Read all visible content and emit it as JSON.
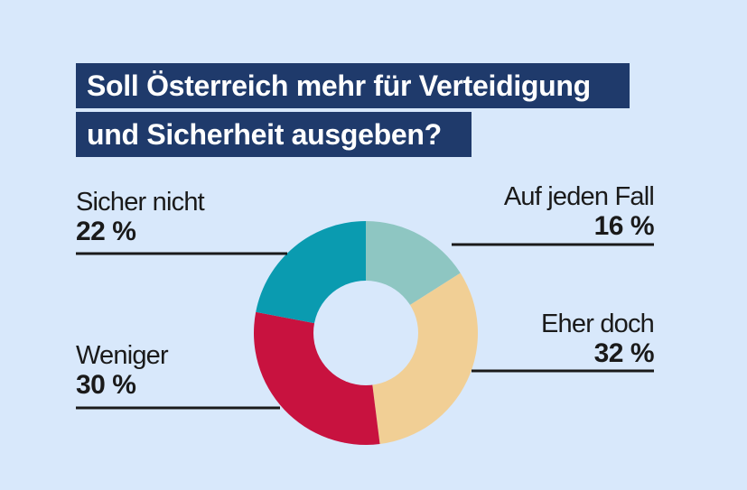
{
  "title": {
    "line1": "Soll Österreich mehr für Verteidigung",
    "line2": "und Sicherheit ausgeben?"
  },
  "colors": {
    "background": "#d8e8fb",
    "title_bg": "#1f3a6b",
    "leader_line": "#1a1a1a",
    "hole": "#d8e8fb"
  },
  "chart_data": {
    "type": "pie",
    "variant": "donut",
    "title": "Soll Österreich mehr für Verteidigung und Sicherheit ausgeben?",
    "start": "12 o'clock",
    "direction": "clockwise",
    "slices": [
      {
        "id": "auf-jeden-fall",
        "label": "Auf jeden Fall",
        "value": 16,
        "value_label": "16 %",
        "color": "#8ec6c2",
        "label_side": "right"
      },
      {
        "id": "eher-doch",
        "label": "Eher doch",
        "value": 32,
        "value_label": "32 %",
        "color": "#f1cf95",
        "label_side": "right"
      },
      {
        "id": "weniger",
        "label": "Weniger",
        "value": 30,
        "value_label": "30 %",
        "color": "#c8123f",
        "label_side": "left"
      },
      {
        "id": "sicher-nicht",
        "label": "Sicher nicht",
        "value": 22,
        "value_label": "22 %",
        "color": "#0a9bb0",
        "label_side": "left"
      }
    ]
  }
}
